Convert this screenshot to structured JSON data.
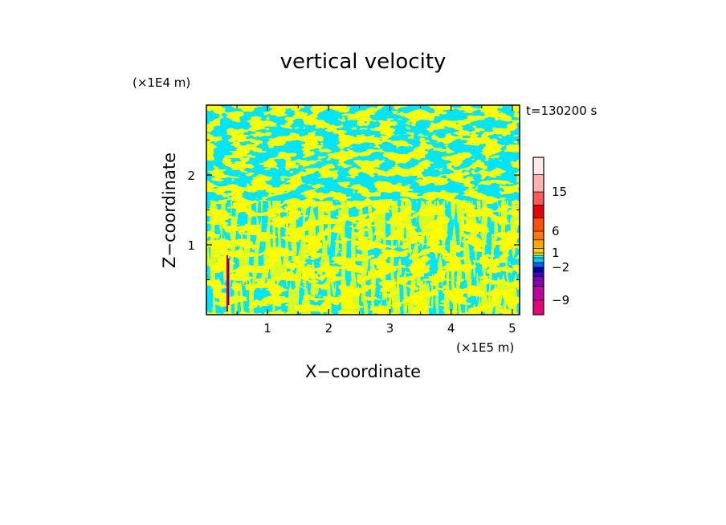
{
  "chart_data": {
    "type": "heatmap",
    "title": "vertical velocity",
    "xlabel": "X−coordinate",
    "ylabel": "Z−coordinate",
    "x_unit": "(×1E5 m)",
    "y_unit": "(×1E4 m)",
    "time_label": "t=130200 s",
    "xlim": [
      0,
      5.12
    ],
    "ylim": [
      0,
      3.0
    ],
    "x_ticks": [
      1,
      2,
      3,
      4,
      5
    ],
    "x_tick_labels": [
      "1",
      "2",
      "3",
      "4",
      "5"
    ],
    "y_ticks": [
      1,
      2
    ],
    "y_tick_labels": [
      "1",
      "2"
    ],
    "field_colors": {
      "positive": "#ffff00",
      "negative": "#00e5ff",
      "strong_positive": "#cc0000",
      "strong_negative": "#5500aa"
    },
    "colorbar": {
      "levels": [
        {
          "color": "#e8007a"
        },
        {
          "color": "#c000a0"
        },
        {
          "color": "#8000b0"
        },
        {
          "color": "#4000c0"
        },
        {
          "color": "#0000a8"
        },
        {
          "color": "#0060ff"
        },
        {
          "color": "#00c8ff"
        },
        {
          "color": "#00ffff"
        },
        {
          "color": "#ffff00"
        },
        {
          "color": "#ffd000"
        },
        {
          "color": "#ffa800"
        },
        {
          "color": "#ff7800"
        },
        {
          "color": "#ff5000"
        },
        {
          "color": "#e60000"
        },
        {
          "color": "#ff5858"
        },
        {
          "color": "#ffb0b0"
        },
        {
          "color": "#ffeaea"
        }
      ],
      "labels": [
        {
          "text": "15",
          "position": 15
        },
        {
          "text": "6",
          "position": 6
        },
        {
          "text": "1",
          "position": 1
        },
        {
          "text": "−2",
          "position": -2
        },
        {
          "text": "−9",
          "position": -9
        }
      ]
    }
  }
}
